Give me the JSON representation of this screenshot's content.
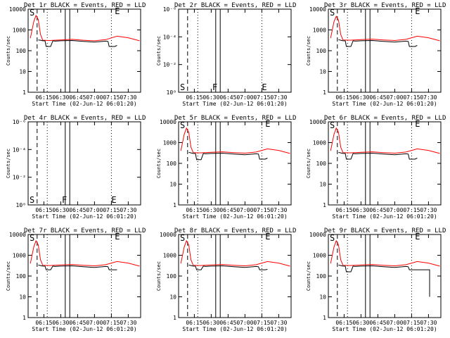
{
  "colors": {
    "events": "#000000",
    "lld": "#ff0000",
    "background": "#ffffff"
  },
  "chart_data": [
    {
      "type": "line",
      "title": "Det 1r BLACK = Events, RED = LLD",
      "xlabel": "Start Time (02-Jun-12 06:01:20)",
      "ylabel": "Counts/sec",
      "x_tick_labels": [
        "06:15",
        "06:30",
        "06:45",
        "07:00",
        "07:15",
        "07:30"
      ],
      "y_tick_labels": [
        "1",
        "10",
        "100",
        "1000",
        "10000"
      ],
      "y_scale": "log",
      "xlim": [
        "06:01",
        "07:41"
      ],
      "ylim": [
        1,
        10000
      ],
      "markers": [
        "S",
        "E"
      ],
      "series": [
        {
          "color": "#ff0000",
          "x": [
            "06:03",
            "06:06",
            "06:08",
            "06:10",
            "06:12",
            "06:14",
            "06:20",
            "06:30",
            "06:40",
            "06:50",
            "07:00",
            "07:10",
            "07:20",
            "07:30",
            "07:40"
          ],
          "y": [
            400,
            2500,
            5000,
            3200,
            600,
            320,
            310,
            330,
            350,
            320,
            300,
            340,
            500,
            420,
            300
          ]
        },
        {
          "color": "#000000",
          "x": [
            "06:10",
            "06:12",
            "06:14",
            "06:16",
            "06:17",
            "06:18",
            "06:21",
            "06:23",
            "06:25",
            "06:30",
            "06:40",
            "06:50",
            "07:00",
            "07:10",
            "07:12",
            "07:13",
            "07:18",
            "07:20"
          ],
          "y": [
            330,
            320,
            300,
            300,
            160,
            160,
            160,
            300,
            290,
            300,
            310,
            280,
            260,
            290,
            280,
            160,
            160,
            180
          ]
        }
      ]
    },
    {
      "type": "line",
      "title": "Det 2r BLACK = Events, RED = LLD",
      "xlabel": "Start Time (02-Jun-12 06:01:20)",
      "ylabel": "Counts/sec",
      "x_tick_labels": [
        "06:15",
        "06:30",
        "06:45",
        "07:00",
        "07:15",
        "07:30"
      ],
      "y_tick_labels": [
        "10⁰",
        "10⁻²",
        "10⁻⁴",
        "10⁻⁶"
      ],
      "y_scale": "log",
      "xlim": [
        "06:01",
        "07:41"
      ],
      "ylim": [
        1e-06,
        1.0
      ],
      "markers": [
        "S",
        "F",
        "E"
      ],
      "series": []
    },
    {
      "type": "line",
      "title": "Det 3r BLACK = Events, RED = LLD",
      "xlabel": "Start Time (02-Jun-12 06:01:20)",
      "ylabel": "Counts/sec",
      "x_tick_labels": [
        "06:15",
        "06:30",
        "06:45",
        "07:00",
        "07:15",
        "07:30"
      ],
      "y_tick_labels": [
        "1",
        "10",
        "100",
        "1000",
        "10000"
      ],
      "y_scale": "log",
      "xlim": [
        "06:01",
        "07:41"
      ],
      "ylim": [
        1,
        10000
      ],
      "markers": [
        "S",
        "E"
      ],
      "series": [
        {
          "color": "#ff0000",
          "x": [
            "06:03",
            "06:06",
            "06:08",
            "06:10",
            "06:12",
            "06:14",
            "06:20",
            "06:30",
            "06:40",
            "06:50",
            "07:00",
            "07:10",
            "07:20",
            "07:30",
            "07:40"
          ],
          "y": [
            400,
            2500,
            4500,
            3000,
            600,
            330,
            320,
            340,
            360,
            330,
            310,
            350,
            500,
            420,
            300
          ]
        },
        {
          "color": "#000000",
          "x": [
            "06:10",
            "06:12",
            "06:14",
            "06:16",
            "06:17",
            "06:18",
            "06:21",
            "06:23",
            "06:25",
            "06:30",
            "06:40",
            "06:50",
            "07:00",
            "07:10",
            "07:12",
            "07:13",
            "07:18",
            "07:20"
          ],
          "y": [
            340,
            320,
            300,
            300,
            160,
            160,
            160,
            300,
            290,
            300,
            310,
            280,
            260,
            290,
            280,
            160,
            160,
            180
          ]
        }
      ]
    },
    {
      "type": "line",
      "title": "Det 4r BLACK = Events, RED = LLD",
      "xlabel": "Start Time (02-Jun-12 06:01:20)",
      "ylabel": "Counts/sec",
      "x_tick_labels": [
        "06:15",
        "06:30",
        "06:45",
        "07:00",
        "07:15",
        "07:30"
      ],
      "y_tick_labels": [
        "10⁰",
        "10⁻²",
        "10⁻⁴",
        "10⁻⁶"
      ],
      "y_scale": "log",
      "xlim": [
        "06:01",
        "07:41"
      ],
      "ylim": [
        1e-06,
        1.0
      ],
      "markers": [
        "S",
        "F",
        "E"
      ],
      "series": []
    },
    {
      "type": "line",
      "title": "Det 5r BLACK = Events, RED = LLD",
      "xlabel": "Start Time (02-Jun-12 06:01:20)",
      "ylabel": "Counts/sec",
      "x_tick_labels": [
        "06:15",
        "06:30",
        "06:45",
        "07:00",
        "07:15",
        "07:30"
      ],
      "y_tick_labels": [
        "1",
        "10",
        "100",
        "1000",
        "10000"
      ],
      "y_scale": "log",
      "xlim": [
        "06:01",
        "07:41"
      ],
      "ylim": [
        1,
        10000
      ],
      "markers": [
        "S",
        "E"
      ],
      "series": [
        {
          "color": "#ff0000",
          "x": [
            "06:03",
            "06:06",
            "06:08",
            "06:10",
            "06:12",
            "06:14",
            "06:20",
            "06:30",
            "06:40",
            "06:50",
            "07:00",
            "07:10",
            "07:20",
            "07:30",
            "07:40"
          ],
          "y": [
            400,
            2500,
            5000,
            3200,
            600,
            330,
            320,
            340,
            360,
            330,
            310,
            350,
            500,
            420,
            300
          ]
        },
        {
          "color": "#000000",
          "x": [
            "06:10",
            "06:12",
            "06:14",
            "06:16",
            "06:17",
            "06:18",
            "06:21",
            "06:23",
            "06:25",
            "06:30",
            "06:40",
            "06:50",
            "07:00",
            "07:10",
            "07:12",
            "07:13",
            "07:18",
            "07:20"
          ],
          "y": [
            340,
            320,
            300,
            300,
            150,
            150,
            150,
            300,
            290,
            300,
            310,
            280,
            260,
            290,
            280,
            160,
            160,
            180
          ]
        }
      ]
    },
    {
      "type": "line",
      "title": "Det 6r BLACK = Events, RED = LLD",
      "xlabel": "Start Time (02-Jun-12 06:01:20)",
      "ylabel": "Counts/sec",
      "x_tick_labels": [
        "06:15",
        "06:30",
        "06:45",
        "07:00",
        "07:15",
        "07:30"
      ],
      "y_tick_labels": [
        "1",
        "10",
        "100",
        "1000",
        "10000"
      ],
      "y_scale": "log",
      "xlim": [
        "06:01",
        "07:41"
      ],
      "ylim": [
        1,
        10000
      ],
      "markers": [
        "S",
        "E"
      ],
      "series": [
        {
          "color": "#ff0000",
          "x": [
            "06:03",
            "06:06",
            "06:08",
            "06:10",
            "06:12",
            "06:14",
            "06:20",
            "06:30",
            "06:40",
            "06:50",
            "07:00",
            "07:10",
            "07:20",
            "07:30",
            "07:40"
          ],
          "y": [
            400,
            2500,
            5000,
            3200,
            600,
            330,
            320,
            340,
            360,
            330,
            310,
            350,
            500,
            420,
            300
          ]
        },
        {
          "color": "#000000",
          "x": [
            "06:10",
            "06:12",
            "06:14",
            "06:16",
            "06:17",
            "06:18",
            "06:21",
            "06:23",
            "06:25",
            "06:30",
            "06:40",
            "06:50",
            "07:00",
            "07:10",
            "07:12",
            "07:13",
            "07:18",
            "07:20"
          ],
          "y": [
            340,
            320,
            300,
            300,
            160,
            160,
            160,
            300,
            290,
            300,
            310,
            280,
            260,
            290,
            280,
            160,
            160,
            180
          ]
        }
      ]
    },
    {
      "type": "line",
      "title": "Det 7r BLACK = Events, RED = LLD",
      "xlabel": "Start Time (02-Jun-12 06:01:20)",
      "ylabel": "Counts/sec",
      "x_tick_labels": [
        "06:15",
        "06:30",
        "06:45",
        "07:00",
        "07:15",
        "07:30"
      ],
      "y_tick_labels": [
        "1",
        "10",
        "100",
        "1000",
        "10000"
      ],
      "y_scale": "log",
      "xlim": [
        "06:01",
        "07:41"
      ],
      "ylim": [
        1,
        10000
      ],
      "markers": [
        "S",
        "E"
      ],
      "series": [
        {
          "color": "#ff0000",
          "x": [
            "06:03",
            "06:06",
            "06:08",
            "06:10",
            "06:12",
            "06:14",
            "06:20",
            "06:30",
            "06:40",
            "06:50",
            "07:00",
            "07:10",
            "07:20",
            "07:30",
            "07:40"
          ],
          "y": [
            400,
            2500,
            5000,
            3200,
            600,
            330,
            320,
            340,
            360,
            330,
            310,
            350,
            500,
            420,
            300
          ]
        },
        {
          "color": "#000000",
          "x": [
            "06:10",
            "06:12",
            "06:14",
            "06:16",
            "06:17",
            "06:18",
            "06:21",
            "06:23",
            "06:25",
            "06:30",
            "06:40",
            "06:50",
            "07:00",
            "07:10",
            "07:12",
            "07:13",
            "07:18",
            "07:20"
          ],
          "y": [
            340,
            320,
            300,
            300,
            200,
            200,
            200,
            300,
            290,
            300,
            310,
            280,
            260,
            290,
            280,
            200,
            200,
            200
          ]
        }
      ]
    },
    {
      "type": "line",
      "title": "Det 8r BLACK = Events, RED = LLD",
      "xlabel": "Start Time (02-Jun-12 06:01:20)",
      "ylabel": "Counts/sec",
      "x_tick_labels": [
        "06:15",
        "06:30",
        "06:45",
        "07:00",
        "07:15",
        "07:30"
      ],
      "y_tick_labels": [
        "1",
        "10",
        "100",
        "1000",
        "10000"
      ],
      "y_scale": "log",
      "xlim": [
        "06:01",
        "07:41"
      ],
      "ylim": [
        1,
        10000
      ],
      "markers": [
        "S",
        "E"
      ],
      "series": [
        {
          "color": "#ff0000",
          "x": [
            "06:03",
            "06:06",
            "06:08",
            "06:10",
            "06:12",
            "06:14",
            "06:20",
            "06:30",
            "06:40",
            "06:50",
            "07:00",
            "07:10",
            "07:20",
            "07:30",
            "07:40"
          ],
          "y": [
            400,
            2500,
            5000,
            3200,
            600,
            330,
            320,
            340,
            360,
            330,
            310,
            350,
            500,
            420,
            300
          ]
        },
        {
          "color": "#000000",
          "x": [
            "06:10",
            "06:12",
            "06:14",
            "06:16",
            "06:17",
            "06:18",
            "06:21",
            "06:23",
            "06:25",
            "06:30",
            "06:40",
            "06:50",
            "07:00",
            "07:10",
            "07:12",
            "07:13",
            "07:18",
            "07:20"
          ],
          "y": [
            340,
            320,
            300,
            300,
            200,
            200,
            200,
            300,
            290,
            300,
            310,
            280,
            260,
            290,
            280,
            200,
            200,
            210
          ]
        }
      ]
    },
    {
      "type": "line",
      "title": "Det 9r BLACK = Events, RED = LLD",
      "xlabel": "Start Time (02-Jun-12 06:01:20)",
      "ylabel": "Counts/sec",
      "x_tick_labels": [
        "06:15",
        "06:30",
        "06:45",
        "07:00",
        "07:15",
        "07:30"
      ],
      "y_tick_labels": [
        "1",
        "10",
        "100",
        "1000",
        "10000"
      ],
      "y_scale": "log",
      "xlim": [
        "06:01",
        "07:41"
      ],
      "ylim": [
        1,
        10000
      ],
      "markers": [
        "S",
        "E"
      ],
      "series": [
        {
          "color": "#ff0000",
          "x": [
            "06:03",
            "06:06",
            "06:08",
            "06:10",
            "06:12",
            "06:14",
            "06:20",
            "06:30",
            "06:40",
            "06:50",
            "07:00",
            "07:10",
            "07:20",
            "07:30",
            "07:40"
          ],
          "y": [
            400,
            2500,
            5000,
            3200,
            600,
            330,
            320,
            340,
            360,
            330,
            310,
            350,
            500,
            420,
            300
          ]
        },
        {
          "color": "#000000",
          "x": [
            "06:10",
            "06:12",
            "06:14",
            "06:16",
            "06:17",
            "06:18",
            "06:21",
            "06:23",
            "06:25",
            "06:30",
            "06:40",
            "06:50",
            "07:00",
            "07:10",
            "07:12",
            "07:13",
            "07:20",
            "07:30",
            "07:31",
            "07:31"
          ],
          "y": [
            340,
            320,
            300,
            300,
            160,
            160,
            160,
            300,
            290,
            300,
            310,
            280,
            260,
            290,
            280,
            200,
            200,
            200,
            200,
            10
          ]
        }
      ]
    }
  ]
}
